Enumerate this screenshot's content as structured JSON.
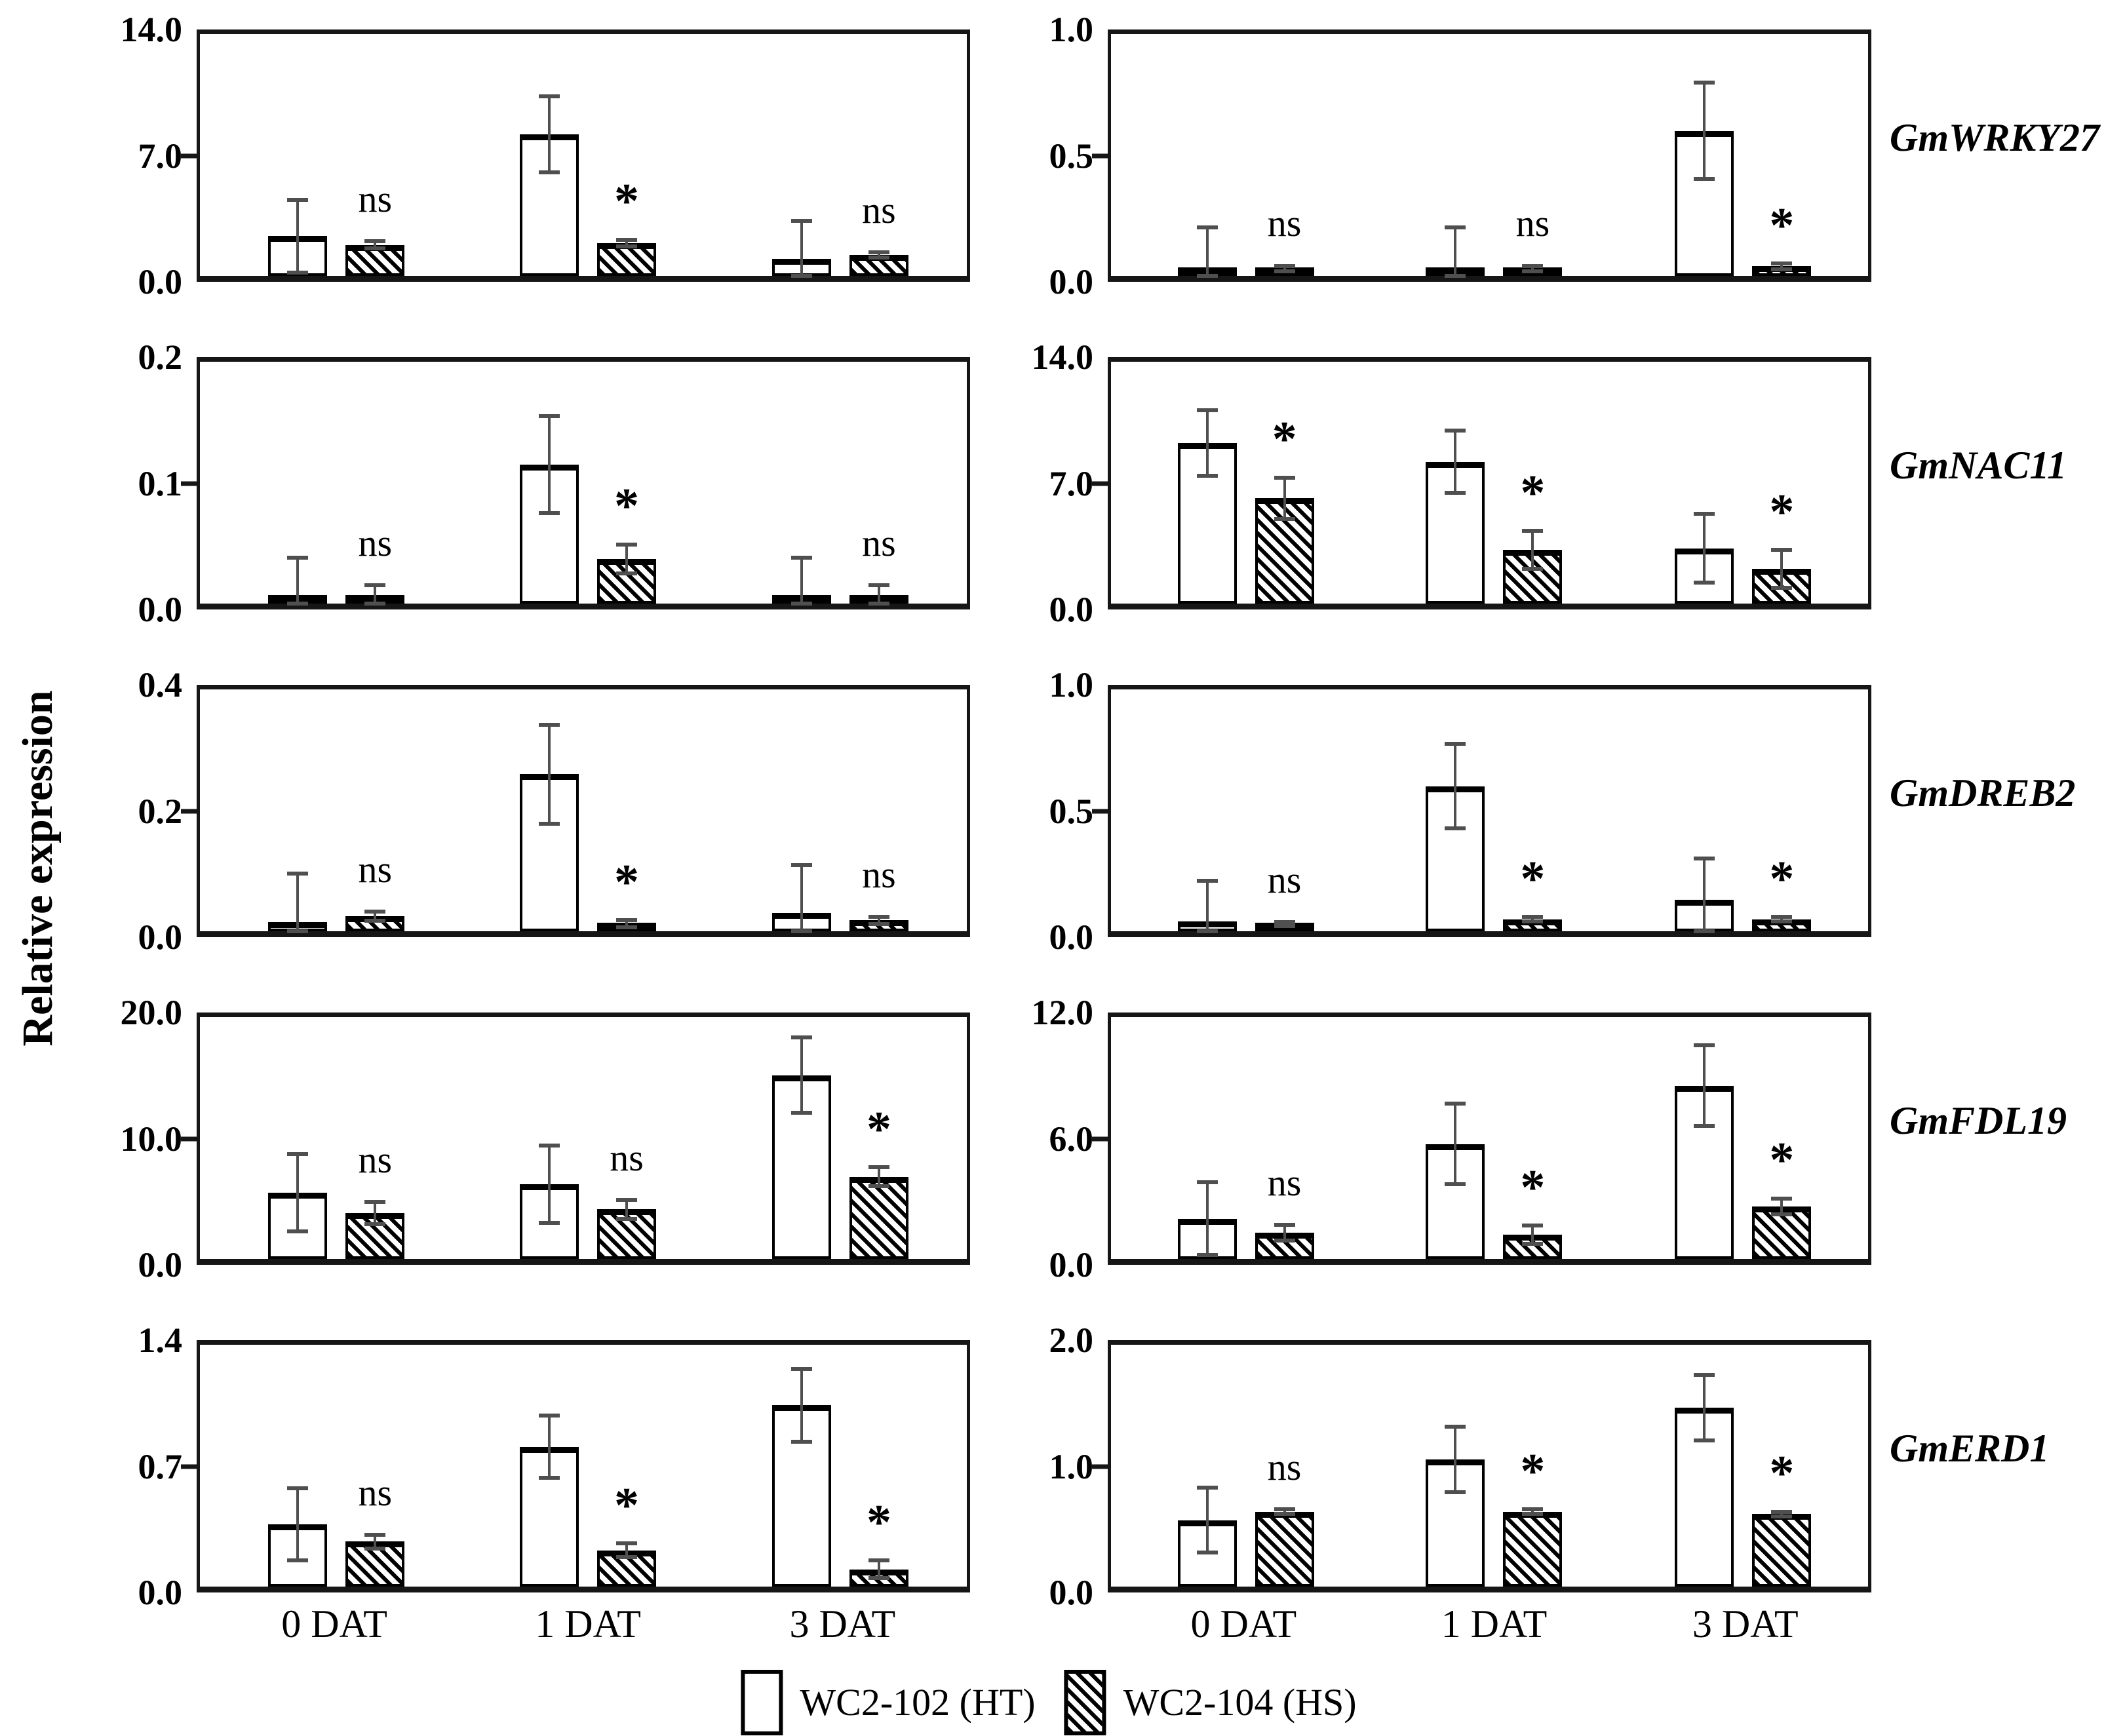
{
  "figure": {
    "y_axis_label": "Relative expression",
    "x_categories": [
      "0 DAT",
      "1 DAT",
      "3 DAT"
    ],
    "legend": {
      "items": [
        {
          "label": "WC2-102 (HT)",
          "swatch": "white"
        },
        {
          "label": "WC2-104 (HS)",
          "swatch": "hatched"
        }
      ]
    },
    "colors": {
      "bar_outline": "#000000",
      "error_bar": "#4f4f4f",
      "axis": "#161616",
      "background": "#ffffff"
    }
  },
  "chart_data": [
    {
      "type": "bar",
      "gene": "GmWRKY27",
      "panel": "left",
      "row": 0,
      "ylim": [
        0,
        14
      ],
      "yticks": [
        "14.0",
        "7.0",
        "0.0"
      ],
      "categories": [
        "0 DAT",
        "1 DAT",
        "3 DAT"
      ],
      "series": [
        {
          "name": "WC2-102 (HT)",
          "style": "white",
          "values": [
            2.3,
            8.2,
            1.0
          ],
          "errors": [
            2.1,
            2.2,
            2.2
          ]
        },
        {
          "name": "WC2-104 (HS)",
          "style": "hatched",
          "values": [
            1.8,
            1.9,
            1.2
          ],
          "errors": [
            0.2,
            0.2,
            0.15
          ]
        }
      ],
      "significance": [
        "ns",
        "*",
        "ns"
      ]
    },
    {
      "type": "bar",
      "gene": "GmWRKY27",
      "panel": "right",
      "row": 0,
      "ylim": [
        0,
        1
      ],
      "yticks": [
        "1.0",
        "0.5",
        "0.0"
      ],
      "categories": [
        "0 DAT",
        "1 DAT",
        "3 DAT"
      ],
      "series": [
        {
          "name": "WC2-102 (HT)",
          "style": "white",
          "values": [
            0.01,
            0.01,
            0.6
          ],
          "errors": [
            0.19,
            0.19,
            0.2
          ]
        },
        {
          "name": "WC2-104 (HS)",
          "style": "hatched",
          "values": [
            0.03,
            0.03,
            0.04
          ],
          "errors": [
            0.012,
            0.012,
            0.012
          ]
        }
      ],
      "significance": [
        "ns",
        "ns",
        "*"
      ]
    },
    {
      "type": "bar",
      "gene": "GmNAC11",
      "panel": "left",
      "row": 1,
      "ylim": [
        0,
        0.2
      ],
      "yticks": [
        "0.2",
        "0.1",
        "0.0"
      ],
      "categories": [
        "0 DAT",
        "1 DAT",
        "3 DAT"
      ],
      "series": [
        {
          "name": "WC2-102 (HT)",
          "style": "white",
          "values": [
            0.002,
            0.115,
            0.002
          ],
          "errors": [
            0.036,
            0.04,
            0.036
          ]
        },
        {
          "name": "WC2-104 (HS)",
          "style": "hatched",
          "values": [
            0.003,
            0.037,
            0.003
          ],
          "errors": [
            0.012,
            0.012,
            0.012
          ]
        }
      ],
      "significance": [
        "ns",
        "*",
        "ns"
      ]
    },
    {
      "type": "bar",
      "gene": "GmNAC11",
      "panel": "right",
      "row": 1,
      "ylim": [
        0,
        14
      ],
      "yticks": [
        "14.0",
        "7.0",
        "0.0"
      ],
      "categories": [
        "0 DAT",
        "1 DAT",
        "3 DAT"
      ],
      "series": [
        {
          "name": "WC2-102 (HT)",
          "style": "white",
          "values": [
            9.3,
            8.2,
            3.2
          ],
          "errors": [
            1.9,
            1.8,
            2.0
          ]
        },
        {
          "name": "WC2-104 (HS)",
          "style": "hatched",
          "values": [
            6.1,
            3.1,
            2.0
          ],
          "errors": [
            1.2,
            1.1,
            1.1
          ]
        }
      ],
      "significance": [
        "*",
        "*",
        "*"
      ]
    },
    {
      "type": "bar",
      "gene": "GmDREB2",
      "panel": "left",
      "row": 2,
      "ylim": [
        0,
        0.4
      ],
      "yticks": [
        "0.4",
        "0.2",
        "0.0"
      ],
      "categories": [
        "0 DAT",
        "1 DAT",
        "3 DAT"
      ],
      "series": [
        {
          "name": "WC2-102 (HT)",
          "style": "white",
          "values": [
            0.015,
            0.26,
            0.03
          ],
          "errors": [
            0.08,
            0.082,
            0.08
          ]
        },
        {
          "name": "WC2-104 (HS)",
          "style": "hatched",
          "values": [
            0.025,
            0.012,
            0.018
          ],
          "errors": [
            0.008,
            0.006,
            0.006
          ]
        }
      ],
      "significance": [
        "ns",
        "*",
        "ns"
      ]
    },
    {
      "type": "bar",
      "gene": "GmDREB2",
      "panel": "right",
      "row": 2,
      "ylim": [
        0,
        1
      ],
      "yticks": [
        "1.0",
        "0.5",
        "0.0"
      ],
      "categories": [
        "0 DAT",
        "1 DAT",
        "3 DAT"
      ],
      "series": [
        {
          "name": "WC2-102 (HT)",
          "style": "white",
          "values": [
            0.04,
            0.6,
            0.13
          ],
          "errors": [
            0.17,
            0.175,
            0.17
          ]
        },
        {
          "name": "WC2-104 (HS)",
          "style": "hatched",
          "values": [
            0.03,
            0.05,
            0.05
          ],
          "errors": [
            0.008,
            0.01,
            0.01
          ]
        }
      ],
      "significance": [
        "ns",
        "*",
        "*"
      ]
    },
    {
      "type": "bar",
      "gene": "GmFDL19",
      "panel": "left",
      "row": 3,
      "ylim": [
        0,
        20
      ],
      "yticks": [
        "20.0",
        "10.0",
        "0.0"
      ],
      "categories": [
        "0 DAT",
        "1 DAT",
        "3 DAT"
      ],
      "series": [
        {
          "name": "WC2-102 (HT)",
          "style": "white",
          "values": [
            5.5,
            6.2,
            15.2
          ],
          "errors": [
            3.2,
            3.2,
            3.1
          ]
        },
        {
          "name": "WC2-104 (HS)",
          "style": "hatched",
          "values": [
            3.8,
            4.1,
            6.8
          ],
          "errors": [
            0.9,
            0.8,
            0.8
          ]
        }
      ],
      "significance": [
        "ns",
        "ns",
        "*"
      ]
    },
    {
      "type": "bar",
      "gene": "GmFDL19",
      "panel": "right",
      "row": 3,
      "ylim": [
        0,
        12
      ],
      "yticks": [
        "12.0",
        "6.0",
        "0.0"
      ],
      "categories": [
        "0 DAT",
        "1 DAT",
        "3 DAT"
      ],
      "series": [
        {
          "name": "WC2-102 (HT)",
          "style": "white",
          "values": [
            2.0,
            5.7,
            8.6
          ],
          "errors": [
            1.8,
            2.0,
            2.0
          ]
        },
        {
          "name": "WC2-104 (HS)",
          "style": "hatched",
          "values": [
            1.3,
            1.2,
            2.6
          ],
          "errors": [
            0.4,
            0.45,
            0.4
          ]
        }
      ],
      "significance": [
        "ns",
        "*",
        "*"
      ]
    },
    {
      "type": "bar",
      "gene": "GmERD1",
      "panel": "left",
      "row": 4,
      "ylim": [
        0,
        1.4
      ],
      "yticks": [
        "1.4",
        "0.7",
        "0.0"
      ],
      "categories": [
        "0 DAT",
        "1 DAT",
        "3 DAT"
      ],
      "series": [
        {
          "name": "WC2-102 (HT)",
          "style": "white",
          "values": [
            0.36,
            0.81,
            1.05
          ],
          "errors": [
            0.21,
            0.18,
            0.21
          ]
        },
        {
          "name": "WC2-104 (HS)",
          "style": "hatched",
          "values": [
            0.26,
            0.21,
            0.1
          ],
          "errors": [
            0.04,
            0.04,
            0.05
          ]
        }
      ],
      "significance": [
        "ns",
        "*",
        "*"
      ]
    },
    {
      "type": "bar",
      "gene": "GmERD1",
      "panel": "right",
      "row": 4,
      "ylim": [
        0,
        2
      ],
      "yticks": [
        "2.0",
        "1.0",
        "0.0"
      ],
      "categories": [
        "0 DAT",
        "1 DAT",
        "3 DAT"
      ],
      "series": [
        {
          "name": "WC2-102 (HT)",
          "style": "white",
          "values": [
            0.55,
            1.05,
            1.48
          ],
          "errors": [
            0.27,
            0.27,
            0.27
          ]
        },
        {
          "name": "WC2-104 (HS)",
          "style": "hatched",
          "values": [
            0.62,
            0.62,
            0.6
          ],
          "errors": [
            0.02,
            0.02,
            0.02
          ]
        }
      ],
      "significance": [
        "ns",
        "*",
        "*"
      ]
    }
  ]
}
